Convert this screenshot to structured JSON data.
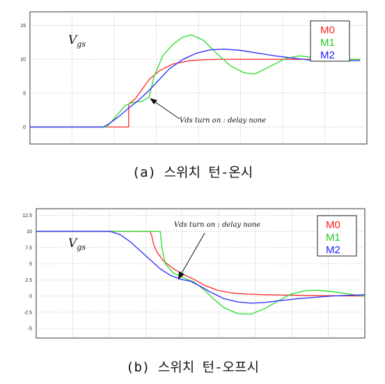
{
  "chart_data": [
    {
      "type": "line",
      "caption": "(a) 스위치 턴-온시",
      "plot_label": "Vgs",
      "ylim": [
        -2.5,
        17
      ],
      "y_ticks": [
        0,
        5,
        10,
        15
      ],
      "x_range": [
        0,
        10
      ],
      "legend": [
        "M0",
        "M1",
        "M2"
      ],
      "legend_placement": "top-right",
      "grid": true,
      "annotation": "Vds turn on : delay none",
      "series": [
        {
          "name": "M0",
          "color": "#ff3333",
          "x": [
            0,
            3.15,
            3.2,
            3.2,
            3.25,
            3.4,
            3.6,
            3.8,
            4.1,
            4.5,
            5.0,
            5.5,
            6,
            7,
            8,
            10
          ],
          "y": [
            0,
            0,
            0,
            3.4,
            3.6,
            4.2,
            5.6,
            7.0,
            8.3,
            9.3,
            9.8,
            9.95,
            10,
            10,
            10,
            10
          ]
        },
        {
          "name": "M1",
          "color": "#33dd33",
          "x": [
            0,
            2.55,
            2.7,
            2.9,
            3.1,
            3.3,
            3.6,
            3.8,
            3.95,
            4.2,
            4.5,
            4.8,
            5.05,
            5.4,
            5.8,
            6.2,
            6.6,
            6.9,
            7.3,
            7.8,
            8.2,
            8.6,
            9,
            9.5,
            10
          ],
          "y": [
            0,
            0,
            0.8,
            2.0,
            3.2,
            3.6,
            3.8,
            4.4,
            7.5,
            10.5,
            12.2,
            13.3,
            13.6,
            12.8,
            10.8,
            9.0,
            8.0,
            7.8,
            8.8,
            10.1,
            10.5,
            10.3,
            10.0,
            10.0,
            10
          ]
        },
        {
          "name": "M2",
          "color": "#3333ff",
          "x": [
            0,
            2.45,
            2.6,
            2.9,
            3.2,
            3.5,
            3.8,
            4.1,
            4.4,
            4.8,
            5.2,
            5.6,
            6.0,
            6.5,
            7.0,
            7.5,
            8.0,
            8.5,
            9.0,
            10
          ],
          "y": [
            0,
            0,
            0.4,
            1.5,
            2.8,
            4.0,
            5.4,
            7.0,
            8.6,
            10.0,
            10.9,
            11.4,
            11.5,
            11.3,
            10.9,
            10.5,
            10.2,
            9.9,
            9.8,
            9.8
          ]
        }
      ]
    },
    {
      "type": "line",
      "caption": "(b) 스위치 턴-오프시",
      "plot_label": "Vgs",
      "ylim": [
        -6.5,
        13.5
      ],
      "y_ticks": [
        12.5,
        10,
        7.5,
        5,
        2.5,
        0,
        -2.5,
        -5
      ],
      "x_range": [
        0,
        10
      ],
      "legend": [
        "M0",
        "M1",
        "M2"
      ],
      "legend_placement": "top-right",
      "grid": true,
      "annotation": "Vds turn on : delay none",
      "series": [
        {
          "name": "M0",
          "color": "#ff3333",
          "x": [
            0,
            3.6,
            3.65,
            3.7,
            3.8,
            4.0,
            4.3,
            4.6,
            4.9,
            5.2,
            5.6,
            6.0,
            6.5,
            7,
            8,
            10
          ],
          "y": [
            10,
            10,
            9.2,
            8.0,
            6.8,
            5.4,
            4.2,
            3.3,
            2.6,
            1.7,
            0.9,
            0.5,
            0.3,
            0.2,
            0.1,
            0
          ]
        },
        {
          "name": "M1",
          "color": "#33dd33",
          "x": [
            0,
            3.9,
            3.95,
            4.05,
            4.3,
            4.6,
            4.9,
            5.2,
            5.5,
            5.8,
            6.2,
            6.6,
            7.0,
            7.4,
            7.8,
            8.2,
            8.6,
            9.0,
            9.4,
            9.8,
            10
          ],
          "y": [
            10,
            10,
            7.5,
            5.0,
            3.5,
            2.8,
            2.2,
            1.0,
            -0.5,
            -1.8,
            -2.7,
            -2.8,
            -2.0,
            -0.8,
            0.3,
            0.8,
            0.9,
            0.7,
            0.4,
            0.1,
            0
          ]
        },
        {
          "name": "M2",
          "color": "#3333ff",
          "x": [
            0,
            2.4,
            2.7,
            3.0,
            3.3,
            3.6,
            3.9,
            4.2,
            4.5,
            4.8,
            5.1,
            5.4,
            5.8,
            6.2,
            6.6,
            7.0,
            7.5,
            8.0,
            8.5,
            9.0,
            9.5,
            10
          ],
          "y": [
            10,
            10,
            9.5,
            8.4,
            7.0,
            5.6,
            4.2,
            3.2,
            2.6,
            2.3,
            1.5,
            0.6,
            -0.4,
            -0.9,
            -1.1,
            -1.0,
            -0.7,
            -0.4,
            -0.2,
            0,
            0.1,
            0.2
          ]
        }
      ]
    }
  ]
}
